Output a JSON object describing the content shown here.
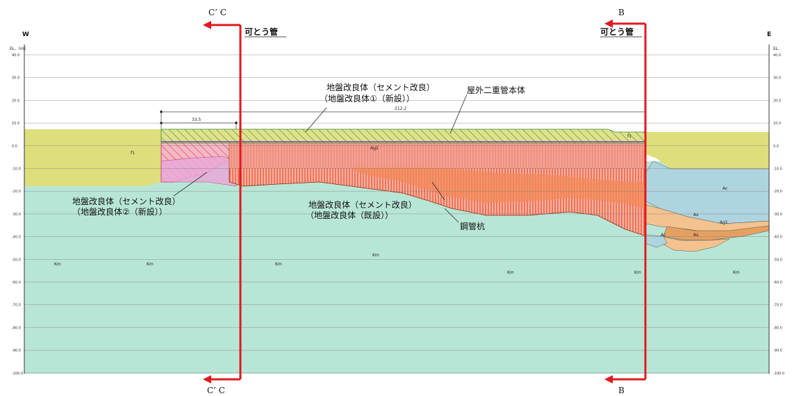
{
  "direction": {
    "west": "W",
    "east": "E"
  },
  "axis": {
    "left_label": "EL.（m）",
    "right_label": "EL.",
    "ticks": [
      "40.0",
      "30.0",
      "20.0",
      "10.0",
      "0.0",
      "-10.0",
      "-20.0",
      "-30.0",
      "-40.0",
      "-50.0",
      "-60.0",
      "-70.0",
      "-80.0",
      "-90.0",
      "-100.0"
    ]
  },
  "sections": {
    "cc_top": "C’ C",
    "cc_bottom": "C’ C",
    "b_top": "B",
    "b_bottom": "B"
  },
  "labels": {
    "flex_pipe_left": "可とう管",
    "flex_pipe_right": "可とう管",
    "ground_cement": "地盤改良体（セメント改良）",
    "ground_new1": "（地盤改良体①（新設））",
    "outer_pipe": "屋外二重管本体",
    "ground_cement_left": "地盤改良体（セメント改良）",
    "ground_new2": "（地盤改良体②（新設））",
    "ground_cement_mid": "地盤改良体（セメント改良）",
    "ground_existing": "（地盤改良体（既設））",
    "steel_pile": "鋼管杭"
  },
  "dimensions": {
    "width_small": "33.5",
    "width_total": "212.2"
  },
  "strata": {
    "f1_left": "f1",
    "f1_right": "f1",
    "km": "Km",
    "ac": "Ac",
    "as1": "As",
    "as2": "As",
    "ag1": "Ag1",
    "ag2": "Ag2",
    "ac_small": "Ac"
  },
  "colors": {
    "km": "#b8e6d6",
    "fill": "#dede7c",
    "ac": "#aed4e0",
    "as": "#f3c28e",
    "ag": "#e5a060",
    "improved": "#ef6c52",
    "section_line": "#e0191f"
  }
}
